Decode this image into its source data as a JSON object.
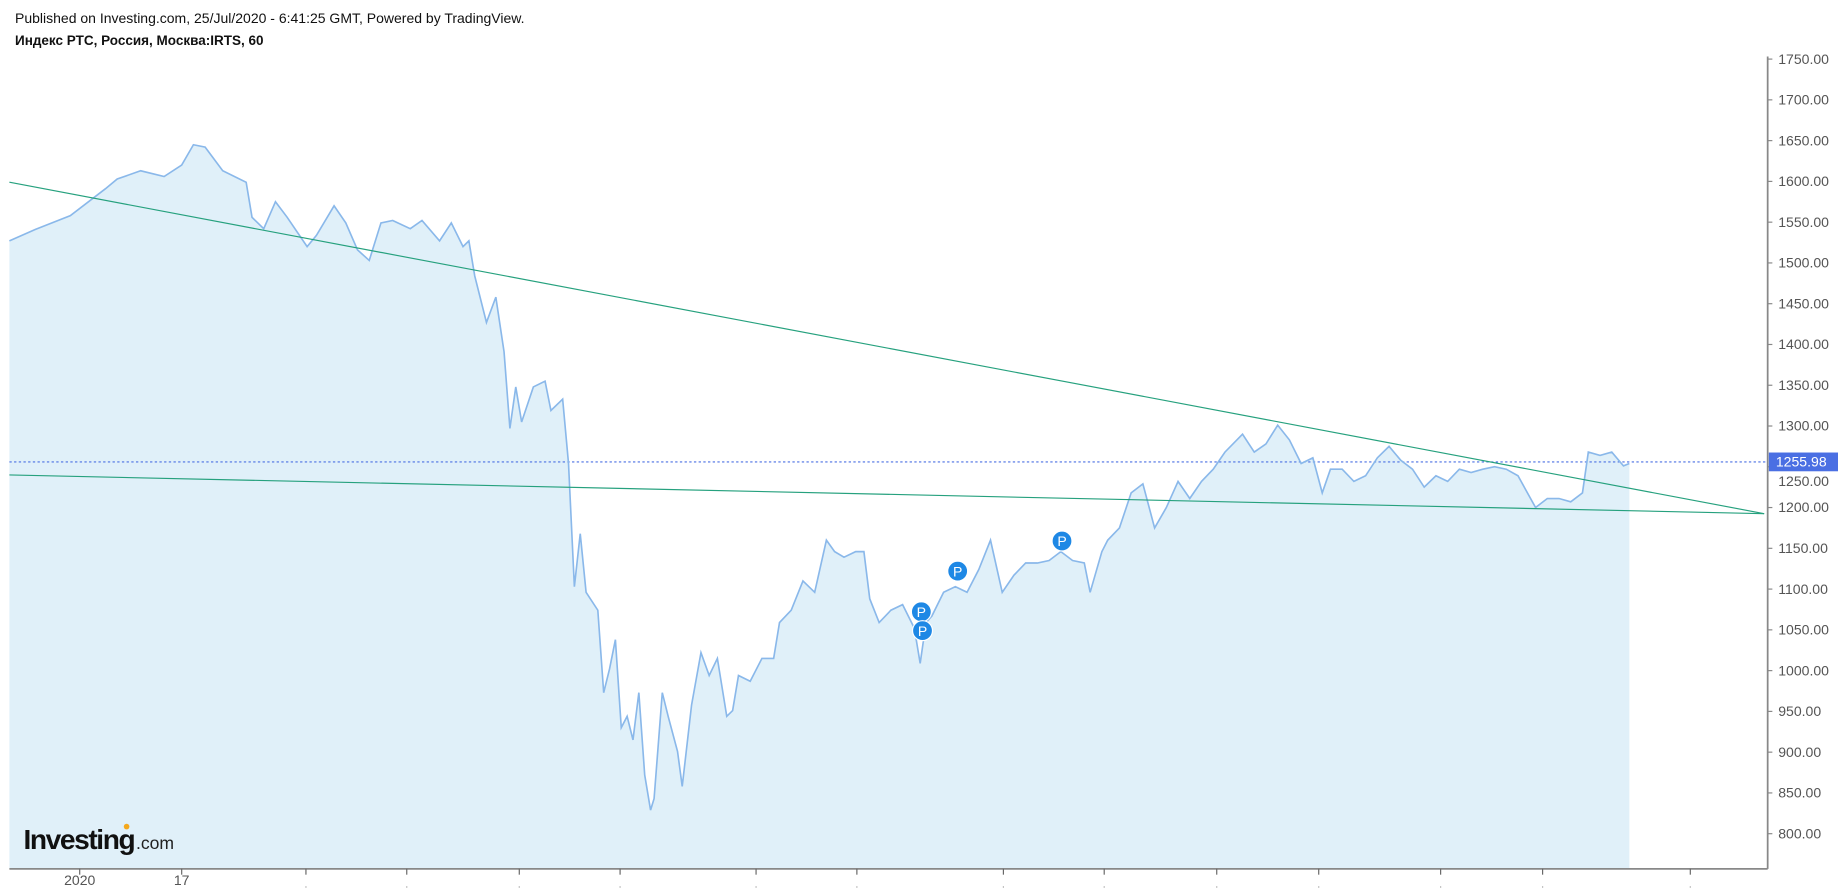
{
  "header": {
    "published": "Published on Investing.com, 25/Jul/2020 - 6:41:25 GMT, Powered by TradingView.",
    "title": "Индекс РТС, Россия, Москва:IRTS, 60"
  },
  "logo": {
    "main": "Investing",
    "suffix": ".com"
  },
  "colors": {
    "line": "#8ab8ea",
    "area": "#e0f0f9",
    "trend": "#26a17e",
    "last_price": "#4a6fe3",
    "marker": "#1e88e5"
  },
  "chart_data": {
    "type": "area",
    "title": "Индекс РТС, Россия, Москва:IRTS, 60",
    "xlabel": "",
    "ylabel": "",
    "x_unit": "bar index (hourly, approximate)",
    "xlim": [
      0,
      1500
    ],
    "ylim": [
      760,
      1760
    ],
    "y_ticks": [
      "800.00",
      "850.00",
      "900.00",
      "950.00",
      "1000.00",
      "1050.00",
      "1100.00",
      "1150.00",
      "1200.00",
      "1250.00",
      "1300.00",
      "1350.00",
      "1400.00",
      "1450.00",
      "1500.00",
      "1550.00",
      "1600.00",
      "1650.00",
      "1700.00",
      "1750.00"
    ],
    "y_tick_values": [
      800,
      850,
      900,
      950,
      1000,
      1050,
      1100,
      1150,
      1200,
      1250,
      1300,
      1350,
      1400,
      1450,
      1500,
      1550,
      1600,
      1650,
      1700,
      1750
    ],
    "x_ticks": [
      {
        "x": 60,
        "label": "2020"
      },
      {
        "x": 147,
        "label": "17"
      },
      {
        "x": 253,
        "label": ""
      },
      {
        "x": 339,
        "label": ""
      },
      {
        "x": 435,
        "label": ""
      },
      {
        "x": 521,
        "label": ""
      },
      {
        "x": 637,
        "label": ""
      },
      {
        "x": 723,
        "label": ""
      },
      {
        "x": 848,
        "label": ""
      },
      {
        "x": 934,
        "label": ""
      },
      {
        "x": 1030,
        "label": ""
      },
      {
        "x": 1117,
        "label": ""
      },
      {
        "x": 1221,
        "label": ""
      },
      {
        "x": 1308,
        "label": ""
      },
      {
        "x": 1434,
        "label": ""
      }
    ],
    "last_price": {
      "value": 1255.98,
      "label": "1255.98"
    },
    "series": [
      {
        "name": "IRTS",
        "x": [
          0,
          22,
          52,
          82,
          92,
          112,
          132,
          147,
          157,
          167,
          182,
          202,
          207,
          217,
          227,
          237,
          254,
          262,
          277,
          287,
          297,
          307,
          317,
          327,
          342,
          352,
          367,
          377,
          387,
          392,
          397,
          407,
          415,
          422,
          427,
          432,
          437,
          447,
          457,
          462,
          472,
          477,
          482,
          487,
          492,
          502,
          507,
          512,
          517,
          522,
          527,
          532,
          537,
          542,
          547,
          550,
          557,
          562,
          570,
          574,
          582,
          590,
          597,
          604,
          612,
          617,
          622,
          632,
          642,
          652,
          657,
          667,
          677,
          687,
          697,
          704,
          712,
          722,
          729,
          734,
          742,
          752,
          762,
          772,
          777,
          782,
          787,
          797,
          807,
          817,
          827,
          837,
          847,
          857,
          867,
          877,
          887,
          897,
          907,
          917,
          922,
          932,
          937,
          947,
          957,
          967,
          977,
          987,
          997,
          1007,
          1017,
          1027,
          1037,
          1052,
          1062,
          1072,
          1082,
          1092,
          1102,
          1112,
          1120,
          1127,
          1137,
          1147,
          1157,
          1167,
          1177,
          1187,
          1197,
          1207,
          1217,
          1227,
          1237,
          1247,
          1257,
          1267,
          1277,
          1287,
          1302,
          1312,
          1322,
          1332,
          1342,
          1347,
          1357,
          1367,
          1377,
          1382
        ],
        "values": [
          1527,
          1541,
          1558,
          1591,
          1603,
          1613,
          1606,
          1620,
          1645,
          1642,
          1613,
          1599,
          1556,
          1542,
          1575,
          1556,
          1520,
          1534,
          1570,
          1549,
          1516,
          1503,
          1549,
          1552,
          1542,
          1552,
          1527,
          1549,
          1520,
          1527,
          1484,
          1427,
          1458,
          1391,
          1297,
          1348,
          1305,
          1348,
          1355,
          1319,
          1333,
          1254,
          1103,
          1168,
          1096,
          1074,
          973,
          1002,
          1038,
          930,
          944,
          915,
          973,
          872,
          829,
          843,
          973,
          944,
          901,
          858,
          958,
          1022,
          994,
          1015,
          944,
          951,
          994,
          987,
          1015,
          1015,
          1059,
          1074,
          1110,
          1096,
          1160,
          1146,
          1139,
          1146,
          1146,
          1088,
          1059,
          1074,
          1081,
          1052,
          1009,
          1059,
          1067,
          1096,
          1103,
          1096,
          1124,
          1160,
          1096,
          1117,
          1132,
          1132,
          1135,
          1146,
          1135,
          1132,
          1096,
          1146,
          1160,
          1175,
          1218,
          1229,
          1175,
          1200,
          1232,
          1211,
          1232,
          1247,
          1268,
          1290,
          1268,
          1278,
          1301,
          1283,
          1254,
          1261,
          1218,
          1247,
          1247,
          1232,
          1239,
          1261,
          1275,
          1258,
          1247,
          1225,
          1239,
          1232,
          1247,
          1243,
          1247,
          1250,
          1247,
          1239,
          1200,
          1211,
          1211,
          1207,
          1218,
          1268,
          1264,
          1268,
          1251,
          1254
        ]
      }
    ],
    "trend_lines": [
      {
        "name": "upper-trendline",
        "from": [
          0,
          1599
        ],
        "to": [
          1497,
          1192.5
        ]
      },
      {
        "name": "lower-trendline",
        "from": [
          0,
          1240
        ],
        "to": [
          1497,
          1192.5
        ]
      }
    ],
    "markers": [
      {
        "x": 778,
        "value": 1052,
        "label": "P"
      },
      {
        "x": 779,
        "value": 1049,
        "label": "P"
      },
      {
        "x": 809,
        "value": 1122,
        "label": "P"
      },
      {
        "x": 898,
        "value": 1159,
        "label": "P"
      }
    ]
  }
}
